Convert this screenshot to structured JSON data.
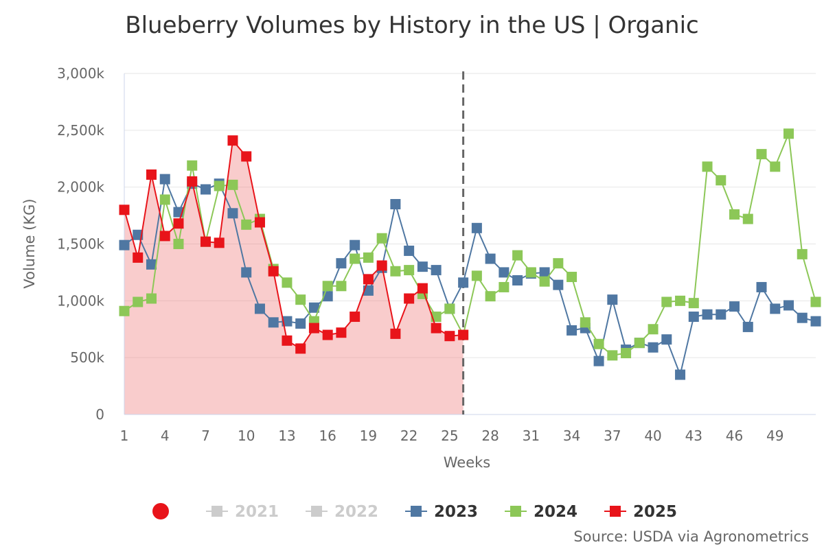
{
  "chart_data": {
    "type": "line",
    "title": "Blueberry Volumes by History in the US | Organic",
    "xlabel": "Weeks",
    "ylabel": "Volume (KG)",
    "ylim": [
      0,
      3000000
    ],
    "yticks": [
      0,
      500000,
      1000000,
      1500000,
      2000000,
      2500000,
      3000000
    ],
    "ytick_labels": [
      "0",
      "500k",
      "1,000k",
      "1,500k",
      "2,000k",
      "2,500k",
      "3,000k"
    ],
    "xlim": [
      1,
      52
    ],
    "xticks": [
      1,
      4,
      7,
      10,
      13,
      16,
      19,
      22,
      25,
      28,
      31,
      34,
      37,
      40,
      43,
      46,
      49
    ],
    "xtick_labels": [
      "1",
      "4",
      "7",
      "10",
      "13",
      "16",
      "19",
      "22",
      "25",
      "28",
      "31",
      "34",
      "37",
      "40",
      "43",
      "46",
      "49"
    ],
    "current_week_marker": 26,
    "source": "Source: USDA via Agronometrics",
    "legend_marker": "current-year-dot",
    "series": [
      {
        "name": "2021",
        "visible": false,
        "color": "#cccccc",
        "values": []
      },
      {
        "name": "2022",
        "visible": false,
        "color": "#cccccc",
        "values": []
      },
      {
        "name": "2023",
        "visible": true,
        "color": "#4f77a2",
        "x": [
          1,
          2,
          3,
          4,
          5,
          6,
          7,
          8,
          9,
          10,
          11,
          12,
          13,
          14,
          15,
          16,
          17,
          18,
          19,
          20,
          21,
          22,
          23,
          24,
          25,
          26,
          27,
          28,
          29,
          30,
          31,
          32,
          33,
          34,
          35,
          36,
          37,
          38,
          39,
          40,
          41,
          42,
          43,
          44,
          45,
          46,
          47,
          48,
          49,
          50,
          51,
          52
        ],
        "values": [
          1490000,
          1580000,
          1320000,
          2070000,
          1780000,
          2030000,
          1980000,
          2030000,
          1770000,
          1250000,
          930000,
          810000,
          820000,
          800000,
          940000,
          1040000,
          1330000,
          1490000,
          1090000,
          1290000,
          1850000,
          1440000,
          1300000,
          1270000,
          930000,
          1160000,
          1640000,
          1370000,
          1250000,
          1180000,
          1240000,
          1250000,
          1140000,
          740000,
          760000,
          470000,
          1010000,
          570000,
          630000,
          590000,
          660000,
          350000,
          860000,
          880000,
          880000,
          950000,
          770000,
          1120000,
          930000,
          960000,
          850000,
          820000
        ]
      },
      {
        "name": "2024",
        "visible": true,
        "color": "#8cc757",
        "x": [
          1,
          2,
          3,
          4,
          5,
          6,
          7,
          8,
          9,
          10,
          11,
          12,
          13,
          14,
          15,
          16,
          17,
          18,
          19,
          20,
          21,
          22,
          23,
          24,
          25,
          26,
          27,
          28,
          29,
          30,
          31,
          32,
          33,
          34,
          35,
          36,
          37,
          38,
          39,
          40,
          41,
          42,
          43,
          44,
          45,
          46,
          47,
          48,
          49,
          50,
          51,
          52
        ],
        "values": [
          910000,
          990000,
          1020000,
          1890000,
          1500000,
          2190000,
          1520000,
          2010000,
          2020000,
          1670000,
          1720000,
          1280000,
          1160000,
          1010000,
          820000,
          1130000,
          1130000,
          1370000,
          1380000,
          1550000,
          1260000,
          1270000,
          1060000,
          860000,
          930000,
          700000,
          1220000,
          1040000,
          1120000,
          1400000,
          1250000,
          1170000,
          1330000,
          1210000,
          810000,
          620000,
          520000,
          540000,
          630000,
          750000,
          990000,
          1000000,
          980000,
          2180000,
          2060000,
          1760000,
          1720000,
          2290000,
          2180000,
          2470000,
          1410000,
          990000
        ]
      },
      {
        "name": "2025",
        "visible": true,
        "color": "#e8141a",
        "x": [
          1,
          2,
          3,
          4,
          5,
          6,
          7,
          8,
          9,
          10,
          11,
          12,
          13,
          14,
          15,
          16,
          17,
          18,
          19,
          20,
          21,
          22,
          23,
          24,
          25,
          26
        ],
        "values": [
          1800000,
          1380000,
          2110000,
          1570000,
          1680000,
          2050000,
          1520000,
          1510000,
          2410000,
          2270000,
          1690000,
          1260000,
          650000,
          580000,
          760000,
          700000,
          720000,
          860000,
          1190000,
          1310000,
          710000,
          1020000,
          1110000,
          760000,
          690000,
          700000
        ]
      }
    ]
  }
}
